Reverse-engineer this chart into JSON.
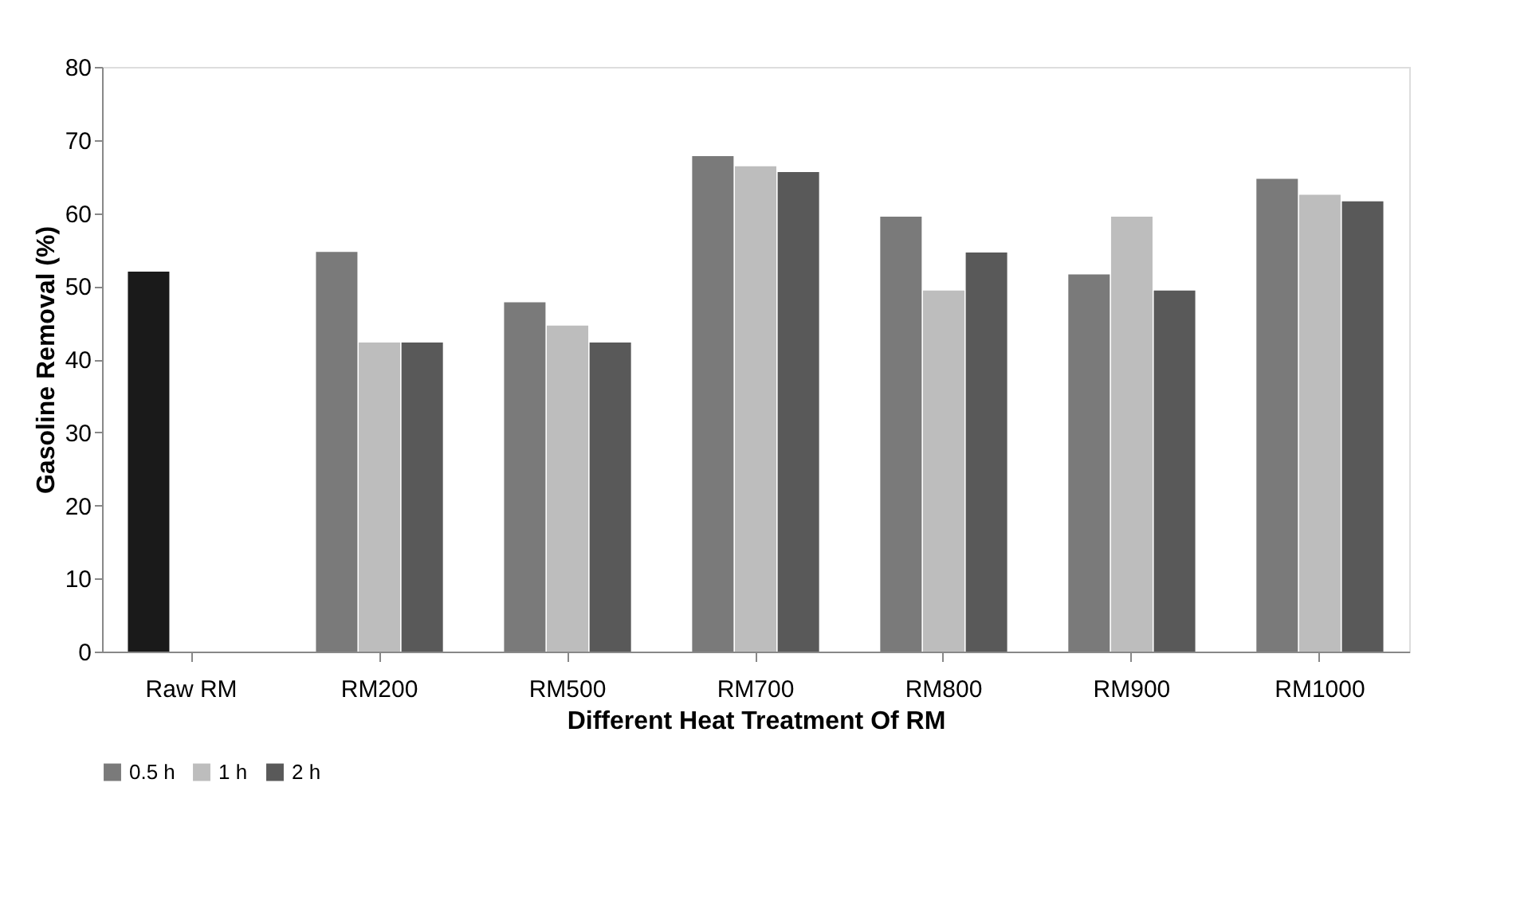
{
  "chart_data": {
    "type": "bar",
    "xlabel": "Different Heat Treatment Of RM",
    "ylabel": "Gasoline Removal (%)",
    "categories": [
      "Raw RM",
      "RM200",
      "RM500",
      "RM700",
      "RM800",
      "RM900",
      "RM1000"
    ],
    "series": [
      {
        "name": "0.5 h",
        "color": "#7a7a7a",
        "colors": [
          "#1a1a1a",
          "#7a7a7a",
          "#7a7a7a",
          "#7a7a7a",
          "#7a7a7a",
          "#7a7a7a",
          "#7a7a7a"
        ],
        "values": [
          52,
          54.7,
          47.8,
          67.8,
          59.5,
          51.6,
          64.7
        ]
      },
      {
        "name": "1 h",
        "color": "#bdbdbd",
        "values": [
          null,
          42.3,
          44.6,
          66.4,
          49.4,
          59.5,
          62.5
        ]
      },
      {
        "name": "2 h",
        "color": "#595959",
        "values": [
          null,
          42.3,
          42.3,
          65.6,
          54.6,
          49.4,
          61.6
        ]
      }
    ],
    "ylim": [
      0,
      80
    ],
    "yticks": [
      0,
      10,
      20,
      30,
      40,
      50,
      60,
      70,
      80
    ],
    "grid": false,
    "legend": "bottom"
  }
}
